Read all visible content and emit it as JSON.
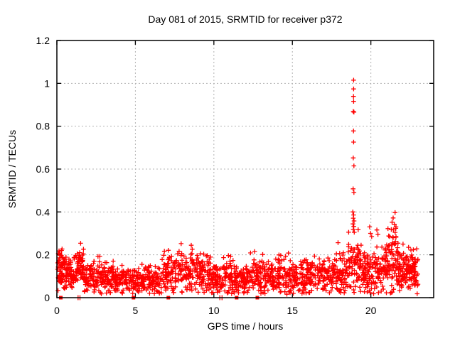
{
  "chart_data": {
    "type": "scatter",
    "title": "Day 081 of 2015, SRMTID for receiver p372",
    "xlabel": "GPS time / hours",
    "ylabel": "SRMTID / TECUs",
    "xlim": [
      0,
      24
    ],
    "ylim": [
      0,
      1.2
    ],
    "xticks": [
      0,
      5,
      10,
      15,
      20
    ],
    "xtick_labels": [
      "0",
      "5",
      "10",
      "15",
      "20"
    ],
    "yticks": [
      0,
      0.2,
      0.4,
      0.6,
      0.8,
      1,
      1.2
    ],
    "ytick_labels": [
      "0",
      "0.2",
      "0.4",
      "0.6",
      "0.8",
      "1",
      "1.2"
    ],
    "grid": {
      "visible": true,
      "style": "dashed",
      "color": "#b3b3b3"
    },
    "legend": "none",
    "marker": {
      "shape": "plus",
      "color": "#ff0000",
      "size": 7,
      "stroke": 1.3
    },
    "border_color": "#000000",
    "series": [
      {
        "name": "SRMTID",
        "color": "#ff0000",
        "spike_points": [
          [
            18.9,
            1.015
          ],
          [
            18.9,
            0.974
          ],
          [
            18.89,
            0.939
          ],
          [
            18.9,
            0.916
          ],
          [
            18.88,
            0.869
          ],
          [
            18.92,
            0.866
          ],
          [
            18.89,
            0.778
          ],
          [
            18.9,
            0.726
          ],
          [
            18.88,
            0.652
          ],
          [
            18.92,
            0.615
          ],
          [
            18.87,
            0.508
          ],
          [
            18.92,
            0.491
          ],
          [
            18.85,
            0.4
          ],
          [
            18.9,
            0.386
          ],
          [
            18.88,
            0.371
          ],
          [
            18.93,
            0.358
          ],
          [
            18.86,
            0.344
          ],
          [
            18.91,
            0.332
          ],
          [
            18.88,
            0.318
          ],
          [
            18.94,
            0.305
          ],
          [
            19.92,
            0.33
          ],
          [
            19.98,
            0.3
          ],
          [
            20.05,
            0.285
          ],
          [
            20.38,
            0.316
          ],
          [
            20.45,
            0.295
          ],
          [
            21.54,
            0.397
          ],
          [
            21.42,
            0.372
          ],
          [
            21.35,
            0.352
          ],
          [
            21.5,
            0.342
          ],
          [
            21.6,
            0.33
          ],
          [
            21.3,
            0.318
          ],
          [
            22.4,
            0.235
          ],
          [
            22.55,
            0.222
          ],
          [
            14.65,
            0.016
          ]
        ],
        "zero_square_hours": [
          0.25,
          4.88,
          7.1,
          11.45,
          12.77
        ],
        "zero_tick_hours": [
          1.35,
          1.47,
          10.38,
          10.52
        ],
        "baseline_segments": [
          [
            0.05,
            0.6,
            70,
            0.13,
            0.045,
            0.23
          ],
          [
            0.6,
            1.1,
            60,
            0.105,
            0.035,
            0.19
          ],
          [
            1.1,
            1.7,
            70,
            0.15,
            0.05,
            0.26
          ],
          [
            1.7,
            2.6,
            80,
            0.095,
            0.035,
            0.18
          ],
          [
            2.6,
            3.6,
            90,
            0.1,
            0.04,
            0.2
          ],
          [
            3.6,
            4.6,
            85,
            0.085,
            0.03,
            0.16
          ],
          [
            4.6,
            5.6,
            85,
            0.08,
            0.03,
            0.17
          ],
          [
            5.6,
            6.6,
            80,
            0.08,
            0.03,
            0.15
          ],
          [
            6.6,
            7.6,
            80,
            0.115,
            0.045,
            0.25
          ],
          [
            7.6,
            9.0,
            110,
            0.13,
            0.05,
            0.27
          ],
          [
            9.0,
            9.8,
            70,
            0.11,
            0.045,
            0.22
          ],
          [
            9.8,
            10.6,
            70,
            0.085,
            0.035,
            0.17
          ],
          [
            10.6,
            11.3,
            60,
            0.1,
            0.04,
            0.2
          ],
          [
            11.3,
            12.3,
            80,
            0.08,
            0.03,
            0.16
          ],
          [
            12.3,
            13.6,
            100,
            0.11,
            0.045,
            0.26
          ],
          [
            13.6,
            14.6,
            80,
            0.1,
            0.04,
            0.2
          ],
          [
            14.6,
            15.6,
            80,
            0.1,
            0.04,
            0.22
          ],
          [
            15.6,
            16.6,
            80,
            0.1,
            0.04,
            0.2
          ],
          [
            16.6,
            17.6,
            80,
            0.11,
            0.045,
            0.24
          ],
          [
            17.6,
            18.5,
            75,
            0.115,
            0.05,
            0.28
          ],
          [
            18.5,
            19.4,
            80,
            0.16,
            0.07,
            0.38
          ],
          [
            19.4,
            20.2,
            70,
            0.12,
            0.05,
            0.3
          ],
          [
            20.2,
            21.0,
            75,
            0.13,
            0.055,
            0.33
          ],
          [
            21.0,
            21.8,
            85,
            0.17,
            0.075,
            0.4
          ],
          [
            21.8,
            22.5,
            75,
            0.13,
            0.05,
            0.3
          ],
          [
            22.5,
            23.0,
            60,
            0.115,
            0.045,
            0.24
          ]
        ],
        "seed": 42,
        "y_floor": 0.018
      }
    ]
  }
}
